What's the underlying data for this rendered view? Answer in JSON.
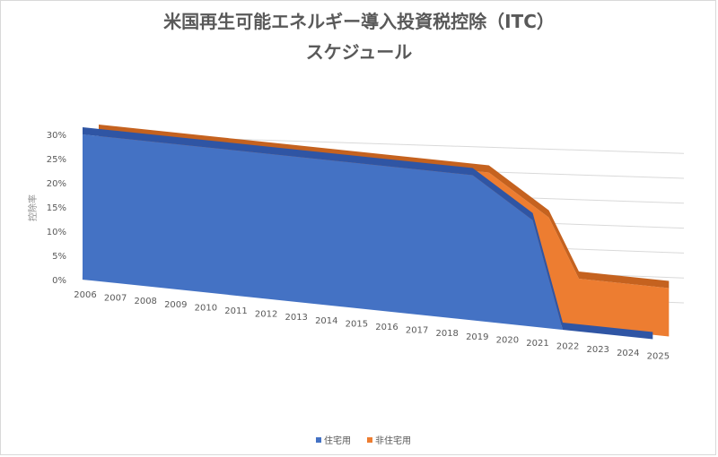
{
  "chart_data": {
    "type": "area",
    "title": "米国再生可能エネルギー導入投資税控除（ITC）",
    "subtitle": "スケジュール",
    "ylabel": "控除率",
    "xlabel": "",
    "categories": [
      "2006",
      "2007",
      "2008",
      "2009",
      "2010",
      "2011",
      "2012",
      "2013",
      "2014",
      "2015",
      "2016",
      "2017",
      "2018",
      "2019",
      "2020",
      "2021",
      "2022",
      "2023",
      "2024",
      "2025"
    ],
    "y_ticks": [
      "0%",
      "5%",
      "10%",
      "15%",
      "20%",
      "25%",
      "30%"
    ],
    "ylim": [
      0,
      30
    ],
    "grid": true,
    "legend_position": "bottom",
    "series": [
      {
        "name": "住宅用",
        "color": "#4472C4",
        "values": [
          30,
          30,
          30,
          30,
          30,
          30,
          30,
          30,
          30,
          30,
          30,
          30,
          30,
          30,
          26,
          22,
          0,
          0,
          0,
          0
        ]
      },
      {
        "name": "非住宅用",
        "color": "#ED7D31",
        "values": [
          30,
          30,
          30,
          30,
          30,
          30,
          30,
          30,
          30,
          30,
          30,
          30,
          30,
          30,
          26,
          22,
          10,
          10,
          10,
          10
        ]
      }
    ]
  }
}
